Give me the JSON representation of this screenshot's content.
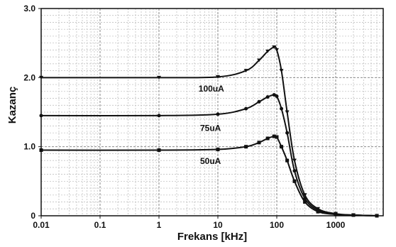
{
  "chart_data": {
    "type": "line",
    "xlabel": "Frekans [kHz]",
    "ylabel": "Kazanç",
    "x_scale": "log",
    "xlim": [
      0.01,
      5000
    ],
    "ylim": [
      0,
      3.0
    ],
    "x_ticks": [
      "0.01",
      "0.1",
      "1",
      "10",
      "100",
      "1000"
    ],
    "y_ticks": [
      "0",
      "1.0",
      "2.0",
      "3.0"
    ],
    "grid": true,
    "series": [
      {
        "name": "100uA",
        "color": "#111111",
        "marker": "triangle",
        "x": [
          0.01,
          1,
          10,
          30,
          50,
          70,
          90,
          100,
          120,
          150,
          200,
          300,
          500,
          1000,
          2000,
          5000
        ],
        "y": [
          2.0,
          2.0,
          2.01,
          2.1,
          2.25,
          2.38,
          2.44,
          2.4,
          2.1,
          1.5,
          0.8,
          0.3,
          0.1,
          0.03,
          0.01,
          0.0
        ]
      },
      {
        "name": "75uA",
        "color": "#111111",
        "marker": "circle",
        "x": [
          0.01,
          1,
          10,
          30,
          50,
          70,
          90,
          100,
          120,
          150,
          200,
          300,
          500,
          1000,
          2000,
          5000
        ],
        "y": [
          1.45,
          1.45,
          1.47,
          1.55,
          1.65,
          1.72,
          1.75,
          1.73,
          1.55,
          1.2,
          0.65,
          0.25,
          0.08,
          0.02,
          0.01,
          0.0
        ]
      },
      {
        "name": "50uA",
        "color": "#111111",
        "marker": "square",
        "x": [
          0.01,
          1,
          10,
          30,
          50,
          70,
          90,
          100,
          120,
          150,
          200,
          300,
          500,
          1000,
          2000,
          5000
        ],
        "y": [
          0.95,
          0.95,
          0.96,
          1.0,
          1.06,
          1.12,
          1.15,
          1.14,
          1.0,
          0.8,
          0.5,
          0.2,
          0.06,
          0.02,
          0.01,
          0.0
        ]
      }
    ],
    "annotations": [
      {
        "text": "100uA",
        "x": 4.7,
        "y": 1.8
      },
      {
        "text": "75uA",
        "x": 5.0,
        "y": 1.23
      },
      {
        "text": "50uA",
        "x": 5.0,
        "y": 0.75
      }
    ]
  }
}
